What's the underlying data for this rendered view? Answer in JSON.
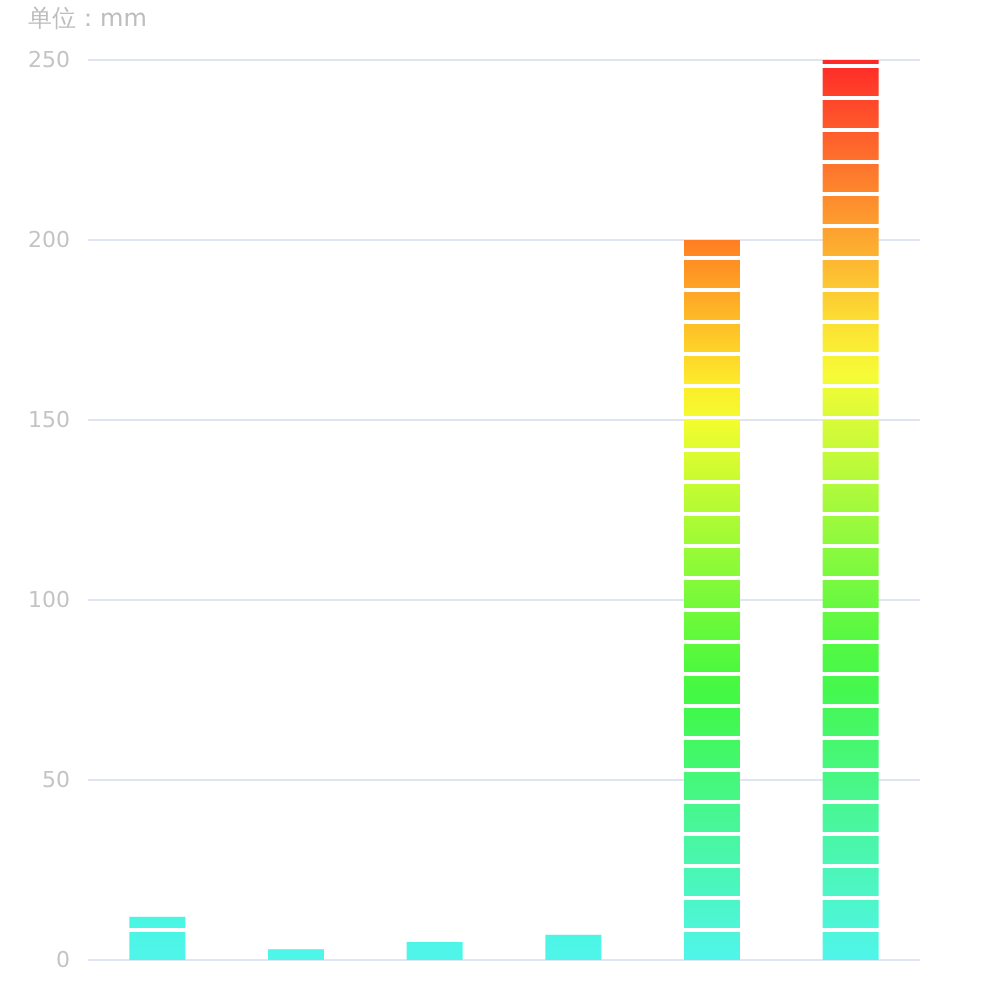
{
  "chart_data": {
    "type": "bar",
    "ylabel": "单位：mm",
    "categories": [
      null,
      null,
      null,
      null,
      null,
      null
    ],
    "series": [
      {
        "color": "#50f5ea",
        "colors": [
          "#48f6e2",
          "#4ef5e9",
          "#4df5e7",
          "#4bf6e5",
          "#ff7d22",
          "#ff2828"
        ],
        "values": [
          12,
          3,
          5,
          7,
          200,
          250
        ]
      }
    ],
    "ylim": [
      0,
      250
    ],
    "yticks": [
      0,
      50,
      100,
      150,
      200,
      250
    ],
    "grid": "y"
  }
}
